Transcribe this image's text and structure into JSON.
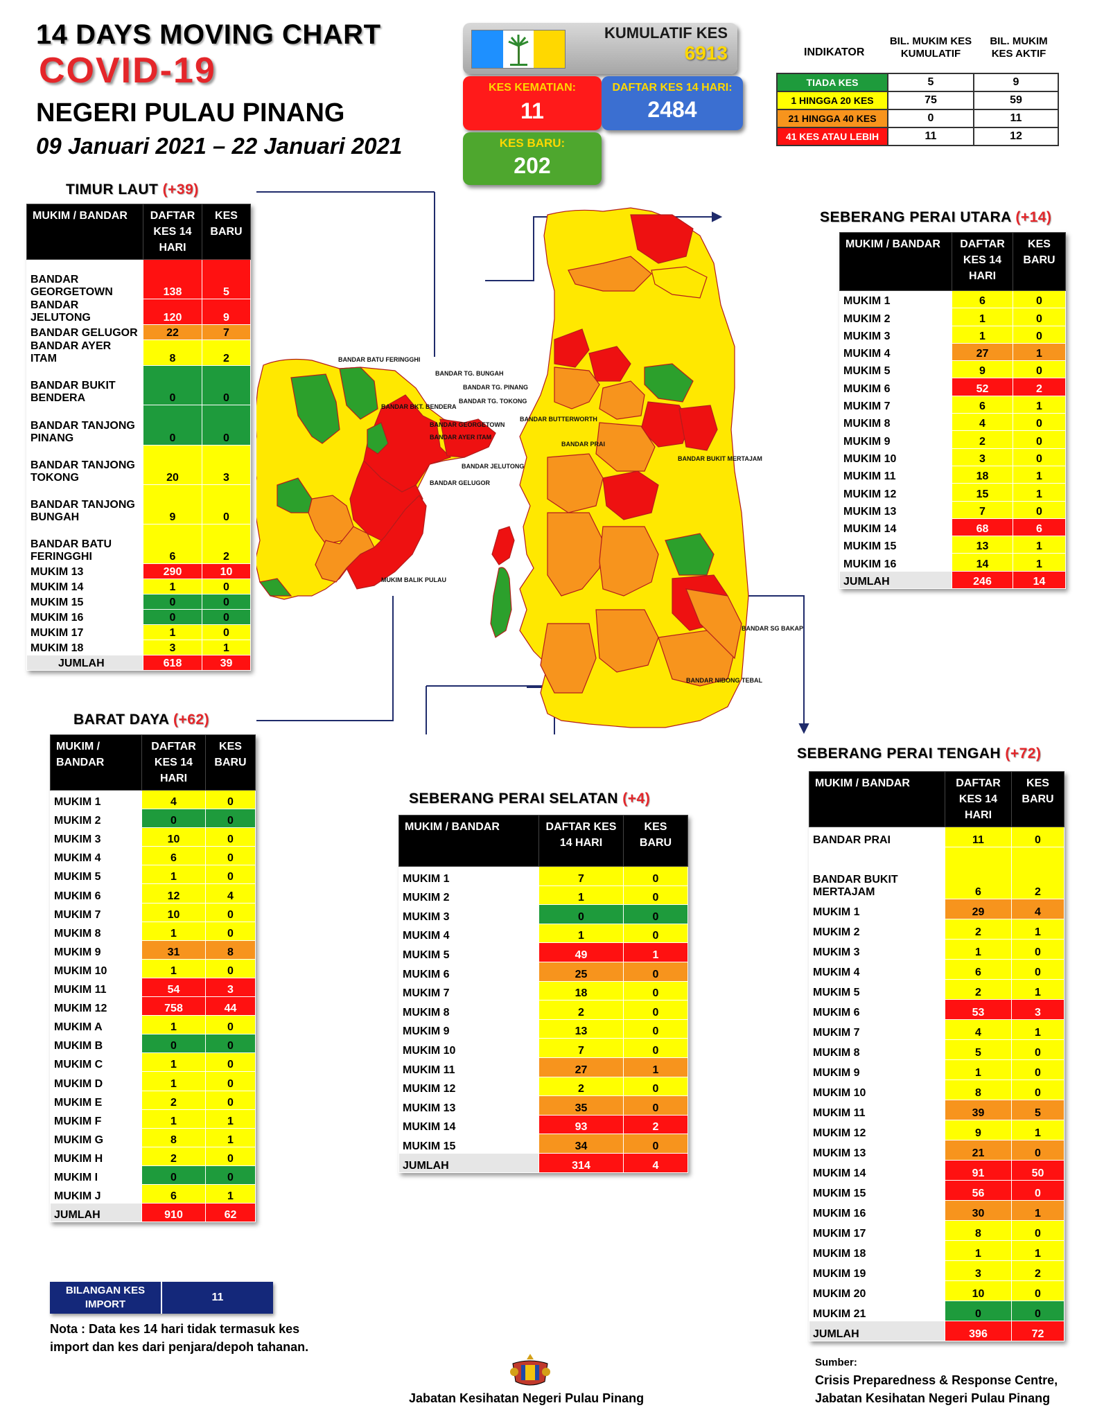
{
  "header": {
    "title": "14  DAYS MOVING CHART",
    "covid": "COVID-19",
    "state": "NEGERI PULAU PINANG",
    "date_range": "09 Januari 2021 – 22 Januari 2021"
  },
  "summary": {
    "kumulatif_label": "KUMULATIF KES",
    "kumulatif_value": "6913",
    "kematian_label": "KES KEMATIAN:",
    "kematian_value": "11",
    "daftar14_label": "DAFTAR KES 14 HARI:",
    "daftar14_value": "2484",
    "baru_label": "KES BARU:",
    "baru_value": "202"
  },
  "indicator": {
    "h_indikator": "INDIKATOR",
    "h_kumulatif": "BIL. MUKIM KES KUMULATIF",
    "h_aktif": "BIL. MUKIM KES AKTIF",
    "rows": [
      {
        "label": "TIADA KES",
        "kumulatif": "5",
        "aktif": "9",
        "color": "#1e9b3c"
      },
      {
        "label": "1 HINGGA 20 KES",
        "kumulatif": "75",
        "aktif": "59",
        "color": "#ffff00"
      },
      {
        "label": "21 HINGGA 40 KES",
        "kumulatif": "0",
        "aktif": "11",
        "color": "#f7941d"
      },
      {
        "label": "41 KES ATAU LEBIH",
        "kumulatif": "11",
        "aktif": "12",
        "color": "#ff1111"
      }
    ]
  },
  "timur_laut": {
    "title": "TIMUR LAUT",
    "count": "(+39)",
    "h_name": "MUKIM / BANDAR",
    "h_daftar": "DAFTAR KES 14 HARI",
    "h_baru": "KES BARU",
    "rows": [
      {
        "name": "BANDAR GEORGETOWN",
        "d": "138",
        "b": "5",
        "cd": "r",
        "cb": "r",
        "h": 2
      },
      {
        "name": "BANDAR JELUTONG",
        "d": "120",
        "b": "9",
        "cd": "r",
        "cb": "r",
        "h": 1
      },
      {
        "name": "BANDAR GELUGOR",
        "d": "22",
        "b": "7",
        "cd": "o",
        "cb": "o",
        "h": 1
      },
      {
        "name": "BANDAR AYER ITAM",
        "d": "8",
        "b": "2",
        "cd": "y",
        "cb": "y",
        "h": 1
      },
      {
        "name": "BANDAR BUKIT BENDERA",
        "d": "0",
        "b": "0",
        "cd": "g",
        "cb": "g",
        "h": 2
      },
      {
        "name": "BANDAR TANJONG PINANG",
        "d": "0",
        "b": "0",
        "cd": "g",
        "cb": "g",
        "h": 2
      },
      {
        "name": "BANDAR TANJONG TOKONG",
        "d": "20",
        "b": "3",
        "cd": "y",
        "cb": "y",
        "h": 2
      },
      {
        "name": "BANDAR TANJONG BUNGAH",
        "d": "9",
        "b": "0",
        "cd": "y",
        "cb": "y",
        "h": 2
      },
      {
        "name": "BANDAR BATU FERINGGHI",
        "d": "6",
        "b": "2",
        "cd": "y",
        "cb": "y",
        "h": 2
      },
      {
        "name": "MUKIM 13",
        "d": "290",
        "b": "10",
        "cd": "r",
        "cb": "r",
        "h": 1
      },
      {
        "name": "MUKIM 14",
        "d": "1",
        "b": "0",
        "cd": "y",
        "cb": "y",
        "h": 1
      },
      {
        "name": "MUKIM 15",
        "d": "0",
        "b": "0",
        "cd": "g",
        "cb": "g",
        "h": 1
      },
      {
        "name": "MUKIM 16",
        "d": "0",
        "b": "0",
        "cd": "g",
        "cb": "g",
        "h": 1
      },
      {
        "name": "MUKIM 17",
        "d": "1",
        "b": "0",
        "cd": "y",
        "cb": "y",
        "h": 1
      },
      {
        "name": "MUKIM 18",
        "d": "3",
        "b": "1",
        "cd": "y",
        "cb": "y",
        "h": 1
      }
    ],
    "total": {
      "name": "JUMLAH",
      "d": "618",
      "b": "39"
    }
  },
  "barat_daya": {
    "title": "BARAT DAYA",
    "count": "(+62)",
    "h_name": "MUKIM / BANDAR",
    "h_daftar": "DAFTAR KES 14 HARI",
    "h_baru": "KES BARU",
    "rows": [
      {
        "name": "MUKIM 1",
        "d": "4",
        "b": "0",
        "cd": "y",
        "cb": "y"
      },
      {
        "name": "MUKIM 2",
        "d": "0",
        "b": "0",
        "cd": "g",
        "cb": "g"
      },
      {
        "name": "MUKIM 3",
        "d": "10",
        "b": "0",
        "cd": "y",
        "cb": "y"
      },
      {
        "name": "MUKIM 4",
        "d": "6",
        "b": "0",
        "cd": "y",
        "cb": "y"
      },
      {
        "name": "MUKIM 5",
        "d": "1",
        "b": "0",
        "cd": "y",
        "cb": "y"
      },
      {
        "name": "MUKIM 6",
        "d": "12",
        "b": "4",
        "cd": "y",
        "cb": "y"
      },
      {
        "name": "MUKIM 7",
        "d": "10",
        "b": "0",
        "cd": "y",
        "cb": "y"
      },
      {
        "name": "MUKIM 8",
        "d": "1",
        "b": "0",
        "cd": "y",
        "cb": "y"
      },
      {
        "name": "MUKIM 9",
        "d": "31",
        "b": "8",
        "cd": "o",
        "cb": "o"
      },
      {
        "name": "MUKIM 10",
        "d": "1",
        "b": "0",
        "cd": "y",
        "cb": "y"
      },
      {
        "name": "MUKIM 11",
        "d": "54",
        "b": "3",
        "cd": "r",
        "cb": "r"
      },
      {
        "name": "MUKIM 12",
        "d": "758",
        "b": "44",
        "cd": "r",
        "cb": "r"
      },
      {
        "name": "MUKIM A",
        "d": "1",
        "b": "0",
        "cd": "y",
        "cb": "y"
      },
      {
        "name": "MUKIM B",
        "d": "0",
        "b": "0",
        "cd": "g",
        "cb": "g"
      },
      {
        "name": "MUKIM C",
        "d": "1",
        "b": "0",
        "cd": "y",
        "cb": "y"
      },
      {
        "name": "MUKIM D",
        "d": "1",
        "b": "0",
        "cd": "y",
        "cb": "y"
      },
      {
        "name": "MUKIM E",
        "d": "2",
        "b": "0",
        "cd": "y",
        "cb": "y"
      },
      {
        "name": "MUKIM F",
        "d": "1",
        "b": "1",
        "cd": "y",
        "cb": "y"
      },
      {
        "name": "MUKIM G",
        "d": "8",
        "b": "1",
        "cd": "y",
        "cb": "y"
      },
      {
        "name": "MUKIM H",
        "d": "2",
        "b": "0",
        "cd": "y",
        "cb": "y"
      },
      {
        "name": "MUKIM I",
        "d": "0",
        "b": "0",
        "cd": "g",
        "cb": "g"
      },
      {
        "name": "MUKIM J",
        "d": "6",
        "b": "1",
        "cd": "y",
        "cb": "y"
      }
    ],
    "total": {
      "name": "JUMLAH",
      "d": "910",
      "b": "62"
    }
  },
  "spu": {
    "title": "SEBERANG PERAI UTARA",
    "count": "(+14)",
    "h_name": "MUKIM / BANDAR",
    "h_daftar": "DAFTAR KES 14 HARI",
    "h_baru": "KES BARU",
    "rows": [
      {
        "name": "MUKIM 1",
        "d": "6",
        "b": "0",
        "cd": "y",
        "cb": "y"
      },
      {
        "name": "MUKIM 2",
        "d": "1",
        "b": "0",
        "cd": "y",
        "cb": "y"
      },
      {
        "name": "MUKIM 3",
        "d": "1",
        "b": "0",
        "cd": "y",
        "cb": "y"
      },
      {
        "name": "MUKIM 4",
        "d": "27",
        "b": "1",
        "cd": "o",
        "cb": "o"
      },
      {
        "name": "MUKIM 5",
        "d": "9",
        "b": "0",
        "cd": "y",
        "cb": "y"
      },
      {
        "name": "MUKIM 6",
        "d": "52",
        "b": "2",
        "cd": "r",
        "cb": "r"
      },
      {
        "name": "MUKIM 7",
        "d": "6",
        "b": "1",
        "cd": "y",
        "cb": "y"
      },
      {
        "name": "MUKIM 8",
        "d": "4",
        "b": "0",
        "cd": "y",
        "cb": "y"
      },
      {
        "name": "MUKIM 9",
        "d": "2",
        "b": "0",
        "cd": "y",
        "cb": "y"
      },
      {
        "name": "MUKIM 10",
        "d": "3",
        "b": "0",
        "cd": "y",
        "cb": "y"
      },
      {
        "name": "MUKIM 11",
        "d": "18",
        "b": "1",
        "cd": "y",
        "cb": "y"
      },
      {
        "name": "MUKIM 12",
        "d": "15",
        "b": "1",
        "cd": "y",
        "cb": "y"
      },
      {
        "name": "MUKIM 13",
        "d": "7",
        "b": "0",
        "cd": "y",
        "cb": "y"
      },
      {
        "name": "MUKIM 14",
        "d": "68",
        "b": "6",
        "cd": "r",
        "cb": "r"
      },
      {
        "name": "MUKIM 15",
        "d": "13",
        "b": "1",
        "cd": "y",
        "cb": "y"
      },
      {
        "name": "MUKIM 16",
        "d": "14",
        "b": "1",
        "cd": "y",
        "cb": "y"
      }
    ],
    "total": {
      "name": "JUMLAH",
      "d": "246",
      "b": "14"
    }
  },
  "sps": {
    "title": "SEBERANG PERAI SELATAN",
    "count": "(+4)",
    "h_name": "MUKIM / BANDAR",
    "h_daftar": "DAFTAR KES 14 HARI",
    "h_baru": "KES BARU",
    "rows": [
      {
        "name": "MUKIM 1",
        "d": "7",
        "b": "0",
        "cd": "y",
        "cb": "y"
      },
      {
        "name": "MUKIM 2",
        "d": "1",
        "b": "0",
        "cd": "y",
        "cb": "y"
      },
      {
        "name": "MUKIM 3",
        "d": "0",
        "b": "0",
        "cd": "g",
        "cb": "g"
      },
      {
        "name": "MUKIM 4",
        "d": "1",
        "b": "0",
        "cd": "y",
        "cb": "y"
      },
      {
        "name": "MUKIM 5",
        "d": "49",
        "b": "1",
        "cd": "r",
        "cb": "r"
      },
      {
        "name": "MUKIM 6",
        "d": "25",
        "b": "0",
        "cd": "o",
        "cb": "o"
      },
      {
        "name": "MUKIM 7",
        "d": "18",
        "b": "0",
        "cd": "y",
        "cb": "y"
      },
      {
        "name": "MUKIM 8",
        "d": "2",
        "b": "0",
        "cd": "y",
        "cb": "y"
      },
      {
        "name": "MUKIM 9",
        "d": "13",
        "b": "0",
        "cd": "y",
        "cb": "y"
      },
      {
        "name": "MUKIM 10",
        "d": "7",
        "b": "0",
        "cd": "y",
        "cb": "y"
      },
      {
        "name": "MUKIM 11",
        "d": "27",
        "b": "1",
        "cd": "o",
        "cb": "o"
      },
      {
        "name": "MUKIM 12",
        "d": "2",
        "b": "0",
        "cd": "y",
        "cb": "y"
      },
      {
        "name": "MUKIM 13",
        "d": "35",
        "b": "0",
        "cd": "o",
        "cb": "o"
      },
      {
        "name": "MUKIM 14",
        "d": "93",
        "b": "2",
        "cd": "r",
        "cb": "r"
      },
      {
        "name": "MUKIM 15",
        "d": "34",
        "b": "0",
        "cd": "o",
        "cb": "o"
      }
    ],
    "total": {
      "name": "JUMLAH",
      "d": "314",
      "b": "4"
    }
  },
  "spt": {
    "title": "SEBERANG PERAI TENGAH",
    "count": "(+72)",
    "h_name": "MUKIM / BANDAR",
    "h_daftar": "DAFTAR KES 14 HARI",
    "h_baru": "KES BARU",
    "rows": [
      {
        "name": "BANDAR PRAI",
        "d": "11",
        "b": "0",
        "cd": "y",
        "cb": "y",
        "h": 1
      },
      {
        "name": "BANDAR BUKIT MERTAJAM",
        "d": "6",
        "b": "2",
        "cd": "y",
        "cb": "y",
        "h": 2
      },
      {
        "name": "MUKIM 1",
        "d": "29",
        "b": "4",
        "cd": "o",
        "cb": "o",
        "h": 1
      },
      {
        "name": "MUKIM 2",
        "d": "2",
        "b": "1",
        "cd": "y",
        "cb": "y",
        "h": 1
      },
      {
        "name": "MUKIM 3",
        "d": "1",
        "b": "0",
        "cd": "y",
        "cb": "y",
        "h": 1
      },
      {
        "name": "MUKIM 4",
        "d": "6",
        "b": "0",
        "cd": "y",
        "cb": "y",
        "h": 1
      },
      {
        "name": "MUKIM 5",
        "d": "2",
        "b": "1",
        "cd": "y",
        "cb": "y",
        "h": 1
      },
      {
        "name": "MUKIM 6",
        "d": "53",
        "b": "3",
        "cd": "r",
        "cb": "r",
        "h": 1
      },
      {
        "name": "MUKIM 7",
        "d": "4",
        "b": "1",
        "cd": "y",
        "cb": "y",
        "h": 1
      },
      {
        "name": "MUKIM 8",
        "d": "5",
        "b": "0",
        "cd": "y",
        "cb": "y",
        "h": 1
      },
      {
        "name": "MUKIM 9",
        "d": "1",
        "b": "0",
        "cd": "y",
        "cb": "y",
        "h": 1
      },
      {
        "name": "MUKIM 10",
        "d": "8",
        "b": "0",
        "cd": "y",
        "cb": "y",
        "h": 1
      },
      {
        "name": "MUKIM 11",
        "d": "39",
        "b": "5",
        "cd": "o",
        "cb": "o",
        "h": 1
      },
      {
        "name": "MUKIM 12",
        "d": "9",
        "b": "1",
        "cd": "y",
        "cb": "y",
        "h": 1
      },
      {
        "name": "MUKIM 13",
        "d": "21",
        "b": "0",
        "cd": "o",
        "cb": "o",
        "h": 1
      },
      {
        "name": "MUKIM 14",
        "d": "91",
        "b": "50",
        "cd": "r",
        "cb": "r",
        "h": 1
      },
      {
        "name": "MUKIM 15",
        "d": "56",
        "b": "0",
        "cd": "r",
        "cb": "r",
        "h": 1
      },
      {
        "name": "MUKIM 16",
        "d": "30",
        "b": "1",
        "cd": "o",
        "cb": "o",
        "h": 1
      },
      {
        "name": "MUKIM 17",
        "d": "8",
        "b": "0",
        "cd": "y",
        "cb": "y",
        "h": 1
      },
      {
        "name": "MUKIM 18",
        "d": "1",
        "b": "1",
        "cd": "y",
        "cb": "y",
        "h": 1
      },
      {
        "name": "MUKIM 19",
        "d": "3",
        "b": "2",
        "cd": "y",
        "cb": "y",
        "h": 1
      },
      {
        "name": "MUKIM 20",
        "d": "10",
        "b": "0",
        "cd": "y",
        "cb": "y",
        "h": 1
      },
      {
        "name": "MUKIM 21",
        "d": "0",
        "b": "0",
        "cd": "g",
        "cb": "g",
        "h": 1
      }
    ],
    "total": {
      "name": "JUMLAH",
      "d": "396",
      "b": "72"
    }
  },
  "import": {
    "label": "BILANGAN KES IMPORT",
    "value": "11"
  },
  "note": "Nota : Data kes 14 hari tidak termasuk kes import dan kes dari penjara/depoh tahanan.",
  "footer": {
    "center": "Jabatan Kesihatan Negeri Pulau Pinang",
    "source_label": "Sumber:",
    "source_line1": "Crisis Preparedness & Response Centre,",
    "source_line2": "Jabatan Kesihatan Negeri Pulau Pinang"
  },
  "map_labels": {
    "batu_feringghi": "BANDAR BATU FERINGGHI",
    "tg_bungah": "BANDAR TG. BUNGAH",
    "tg_pinang": "BANDAR TG. PINANG",
    "tg_tokong": "BANDAR TG. TOKONG",
    "georgetown": "BANDAR GEORGETOWN",
    "ayer_itam": "BANDAR AYER ITAM",
    "jelutong": "BANDAR JELUTONG",
    "gelugor": "BANDAR GELUGOR",
    "bkt_bendera": "BANDAR BKT. BENDERA",
    "butterworth": "BANDAR BUTTERWORTH",
    "prai": "BANDAR PRAI",
    "bukit_mertajam": "BANDAR BUKIT MERTAJAM",
    "sg_bakap": "BANDAR SG BAKAP",
    "nibong_tebal": "BANDAR NIBONG TEBAL",
    "balik_pulau": "MUKIM BALIK PULAU"
  }
}
